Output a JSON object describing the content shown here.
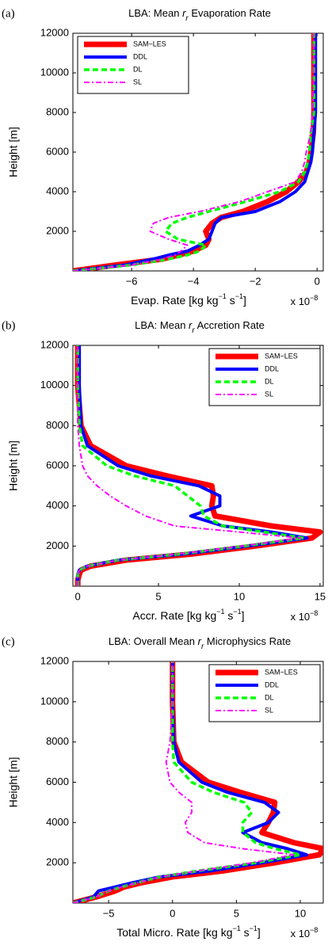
{
  "chart_data": [
    {
      "type": "line",
      "panel_label": "(a)",
      "title": [
        "LBA:  Mean ",
        "r",
        "r",
        " Evaporation Rate"
      ],
      "xlabel": [
        "Evap. Rate [kg kg",
        "−1",
        " s",
        "−1",
        "]"
      ],
      "xscale_label": [
        "x 10",
        "−8"
      ],
      "ylabel": "Height [m]",
      "y": [
        0,
        300,
        600,
        800,
        1000,
        1300,
        1600,
        2000,
        2400,
        2700,
        3000,
        3500,
        4000,
        4500,
        5000,
        5500,
        6000,
        7000,
        8000,
        10000,
        12000
      ],
      "series": [
        {
          "name": "SAM−LES",
          "color": "#ff0000",
          "values": [
            -7.9,
            -6.5,
            -5.0,
            -4.5,
            -4.0,
            -3.6,
            -3.5,
            -3.6,
            -3.4,
            -3.1,
            -2.4,
            -1.6,
            -1.0,
            -0.6,
            -0.35,
            -0.25,
            -0.2,
            -0.12,
            -0.1,
            -0.1,
            -0.1
          ]
        },
        {
          "name": "DDL",
          "color": "#0000ff",
          "values": [
            -7.9,
            -6.2,
            -5.3,
            -4.8,
            -4.2,
            -3.8,
            -3.5,
            -3.4,
            -3.3,
            -3.1,
            -2.0,
            -1.2,
            -0.7,
            -0.4,
            -0.3,
            -0.2,
            -0.15,
            -0.1,
            -0.05,
            -0.05,
            -0.05
          ]
        },
        {
          "name": "DL",
          "color": "#00ff00",
          "values": [
            -7.9,
            -6.0,
            -4.8,
            -4.2,
            -3.8,
            -3.6,
            -4.5,
            -4.9,
            -4.7,
            -4.2,
            -3.5,
            -2.3,
            -1.2,
            -0.6,
            -0.4,
            -0.3,
            -0.25,
            -0.2,
            -0.1,
            -0.1,
            -0.1
          ]
        },
        {
          "name": "SL",
          "color": "#ff00ff",
          "values": [
            -7.9,
            -6.0,
            -5.0,
            -4.6,
            -4.4,
            -4.2,
            -4.8,
            -5.4,
            -5.3,
            -4.8,
            -3.8,
            -2.5,
            -1.6,
            -0.7,
            -0.5,
            -0.4,
            -0.35,
            -0.2,
            -0.15,
            -0.1,
            -0.1
          ]
        }
      ],
      "xlim": [
        -7.9,
        0.2
      ],
      "ylim": [
        0,
        12000
      ],
      "xticks": [
        {
          "value": -6,
          "label": "−6"
        },
        {
          "value": -4,
          "label": "−4"
        },
        {
          "value": -2,
          "label": "−2"
        },
        0
      ],
      "yticks": [
        2000,
        4000,
        6000,
        8000,
        10000,
        12000
      ],
      "legend": "upper left"
    },
    {
      "type": "line",
      "panel_label": "(b)",
      "title": [
        "LBA:  Mean ",
        "r",
        "r",
        " Accretion Rate"
      ],
      "xlabel": [
        "Accr. Rate [kg kg",
        "−1",
        " s",
        "−1",
        "]"
      ],
      "xscale_label": [
        "x 10",
        "−8"
      ],
      "ylabel": "Height [m]",
      "y": [
        0,
        300,
        600,
        800,
        1000,
        1300,
        1600,
        2000,
        2400,
        2700,
        3000,
        3500,
        4000,
        4500,
        5000,
        5500,
        6000,
        7000,
        8000,
        10000,
        12000
      ],
      "series": [
        {
          "name": "SAM−LES",
          "color": "#ff0000",
          "values": [
            0,
            0,
            0.1,
            0.2,
            0.8,
            3,
            7,
            11,
            14.5,
            15,
            12,
            8.5,
            8.3,
            8.4,
            8.3,
            5.5,
            3,
            0.8,
            0.2,
            0,
            0
          ]
        },
        {
          "name": "DDL",
          "color": "#0000ff",
          "values": [
            0,
            0,
            0,
            0.1,
            0.6,
            2.5,
            6.5,
            10.5,
            14.2,
            12,
            9,
            7,
            8.8,
            8.8,
            7.5,
            4.5,
            2.5,
            0.6,
            0.2,
            0.1,
            0.1
          ]
        },
        {
          "name": "DL",
          "color": "#00ff00",
          "values": [
            0,
            0,
            0,
            0.1,
            0.6,
            2.5,
            6.3,
            10.3,
            14,
            11.5,
            9,
            7.8,
            7.6,
            6.8,
            6.0,
            3.5,
            1.8,
            0.3,
            0.1,
            0,
            0
          ]
        },
        {
          "name": "SL",
          "color": "#ff00ff",
          "values": [
            0,
            0,
            0,
            0.1,
            0.6,
            2.5,
            6.2,
            10.2,
            13.8,
            10,
            6,
            4.2,
            3.0,
            2.0,
            1.2,
            0.6,
            0.3,
            0.1,
            0,
            0,
            0
          ]
        }
      ],
      "xlim": [
        -0.3,
        15.2
      ],
      "ylim": [
        0,
        12000
      ],
      "xticks": [
        0,
        5,
        10,
        15
      ],
      "yticks": [
        2000,
        4000,
        6000,
        8000,
        10000,
        12000
      ],
      "legend": "upper right"
    },
    {
      "type": "line",
      "panel_label": "(c)",
      "title": [
        "LBA:  Overall Mean ",
        "r",
        "r",
        " Microphysics Rate"
      ],
      "xlabel": [
        "Total Micro. Rate [kg kg",
        "−1",
        " s",
        "−1",
        "]"
      ],
      "xscale_label": [
        "x 10",
        "−8"
      ],
      "ylabel": "Height [m]",
      "y": [
        0,
        300,
        600,
        800,
        1000,
        1300,
        1600,
        2000,
        2400,
        2700,
        3000,
        3500,
        4000,
        4500,
        5000,
        5500,
        6000,
        7000,
        8000,
        10000,
        12000
      ],
      "series": [
        {
          "name": "SAM−LES",
          "color": "#ff0000",
          "values": [
            -7.8,
            -6.0,
            -4.5,
            -3.8,
            -2.5,
            0,
            4,
            8,
            11.5,
            11.8,
            9.5,
            7,
            7.5,
            7.9,
            8.0,
            5.3,
            2.8,
            0.7,
            0.1,
            0,
            0
          ]
        },
        {
          "name": "DDL",
          "color": "#0000ff",
          "values": [
            -7.8,
            -6.2,
            -5.8,
            -4.5,
            -3.2,
            -1,
            3,
            7,
            10.5,
            9,
            7,
            5.5,
            7.5,
            8.3,
            7.2,
            4.3,
            2.3,
            0.5,
            0.1,
            0,
            0
          ]
        },
        {
          "name": "DL",
          "color": "#00ff00",
          "values": [
            -7.8,
            -6.0,
            -5.0,
            -4.0,
            -2.8,
            -1,
            2,
            6.5,
            10,
            8,
            6.5,
            5.5,
            5.5,
            6.2,
            5.6,
            3.2,
            1.5,
            0.1,
            0,
            0,
            0
          ]
        },
        {
          "name": "SL",
          "color": "#ff00ff",
          "values": [
            -7.8,
            -6.0,
            -5.0,
            -4.0,
            -2.8,
            -1,
            2,
            6.2,
            9.5,
            5.5,
            2.5,
            1.2,
            1.0,
            1.5,
            1.5,
            0.5,
            -0.2,
            -0.5,
            -0.2,
            0,
            0
          ]
        }
      ],
      "xlim": [
        -7.8,
        11.8
      ],
      "ylim": [
        0,
        12000
      ],
      "xticks": [
        {
          "value": -5,
          "label": "−5"
        },
        0,
        5,
        10
      ],
      "yticks": [
        2000,
        4000,
        6000,
        8000,
        10000,
        12000
      ],
      "legend": "upper right"
    }
  ]
}
